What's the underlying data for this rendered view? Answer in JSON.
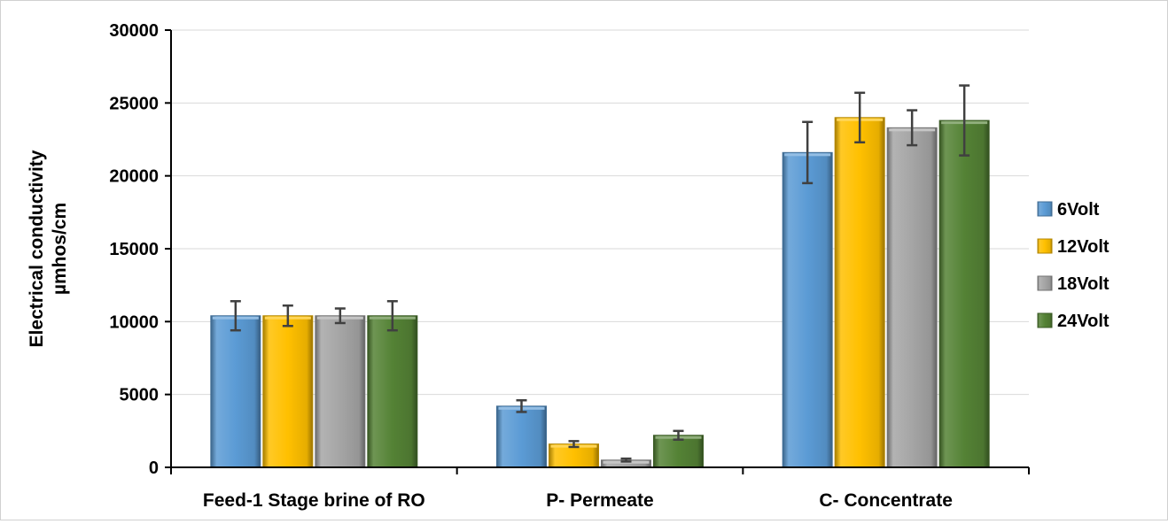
{
  "chart_data": {
    "type": "bar",
    "ylabel": [
      "Electrical conductivity",
      "µmhos/cm"
    ],
    "xlabel": "",
    "ylim": [
      0,
      30000
    ],
    "yticks": [
      0,
      5000,
      10000,
      15000,
      20000,
      25000,
      30000
    ],
    "grid": "horizontal",
    "legend_position": "right",
    "categories": [
      "Feed-1 Stage brine of RO",
      "P- Permeate",
      "C- Concentrate"
    ],
    "series": [
      {
        "name": "6Volt",
        "color": "#5b9bd5",
        "values": [
          10400,
          4200,
          21600
        ],
        "errors": [
          1000,
          400,
          2100
        ]
      },
      {
        "name": "12Volt",
        "color": "#ffc000",
        "values": [
          10400,
          1600,
          24000
        ],
        "errors": [
          700,
          200,
          1700
        ]
      },
      {
        "name": "18Volt",
        "color": "#a5a5a5",
        "values": [
          10400,
          500,
          23300
        ],
        "errors": [
          500,
          100,
          1200
        ]
      },
      {
        "name": "24Volt",
        "color": "#548235",
        "values": [
          10400,
          2200,
          23800
        ],
        "errors": [
          1000,
          300,
          2400
        ]
      }
    ]
  }
}
